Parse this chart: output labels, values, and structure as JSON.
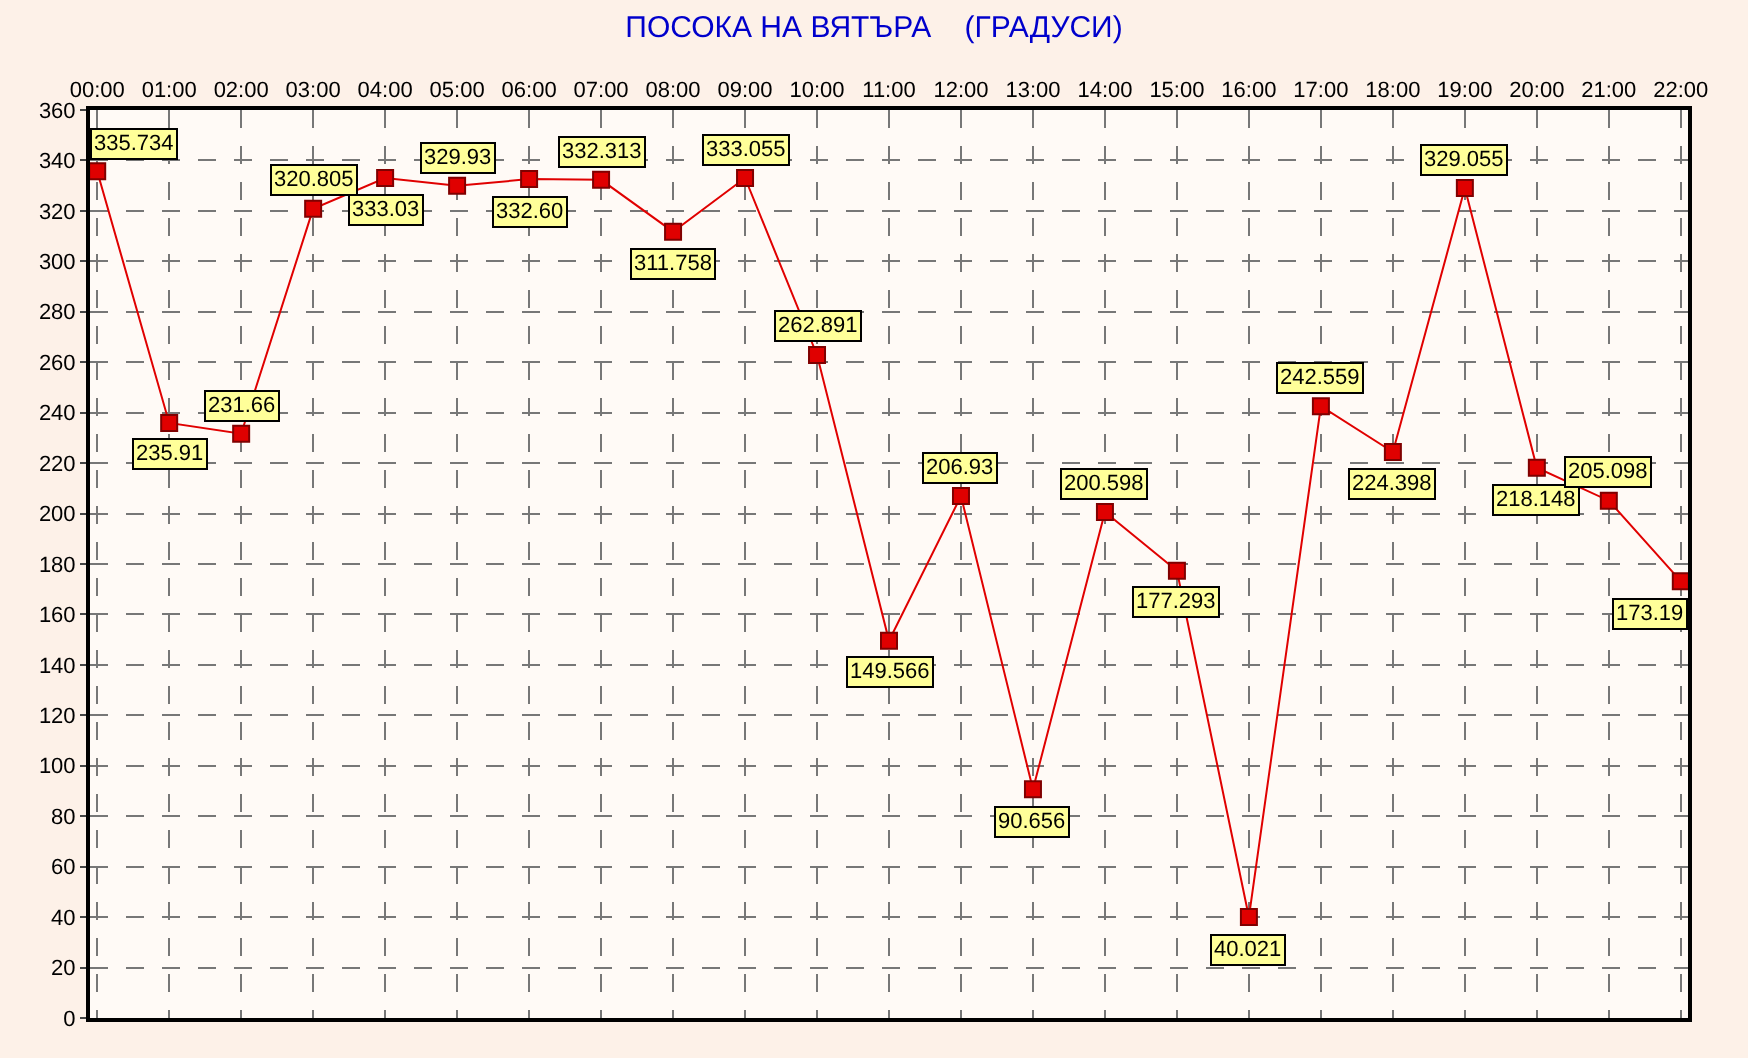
{
  "chart_data": {
    "type": "line",
    "title": "ПОСОКА НА ВЯТЪРА    (ГРАДУСИ)",
    "categories": [
      "00:00",
      "01:00",
      "02:00",
      "03:00",
      "04:00",
      "05:00",
      "06:00",
      "07:00",
      "08:00",
      "09:00",
      "10:00",
      "11:00",
      "12:00",
      "13:00",
      "14:00",
      "15:00",
      "16:00",
      "17:00",
      "18:00",
      "19:00",
      "20:00",
      "21:00",
      "22:00"
    ],
    "series": [
      {
        "color": "#e00000",
        "values": [
          335.734,
          235.91,
          231.66,
          320.805,
          333.03,
          329.93,
          332.6,
          332.313,
          311.758,
          333.055,
          262.891,
          149.566,
          206.93,
          90.656,
          200.598,
          177.293,
          40.021,
          242.559,
          224.398,
          329.055,
          218.148,
          205.098,
          173.19
        ],
        "value_labels": [
          "335.734",
          "235.91",
          "231.66",
          "320.805",
          "333.03",
          "329.93",
          "332.60",
          "332.313",
          "311.758",
          "333.055",
          "262.891",
          "149.566",
          "206.93",
          "90.656",
          "200.598",
          "177.293",
          "40.021",
          "242.559",
          "224.398",
          "329.055",
          "218.148",
          "205.098",
          "173.19"
        ]
      }
    ],
    "ylim": [
      0,
      360
    ],
    "yticks": [
      0,
      20,
      40,
      60,
      80,
      100,
      120,
      140,
      160,
      180,
      200,
      220,
      240,
      260,
      280,
      300,
      320,
      340,
      360
    ],
    "grid": true,
    "marker": "square",
    "line_style": "solid"
  }
}
